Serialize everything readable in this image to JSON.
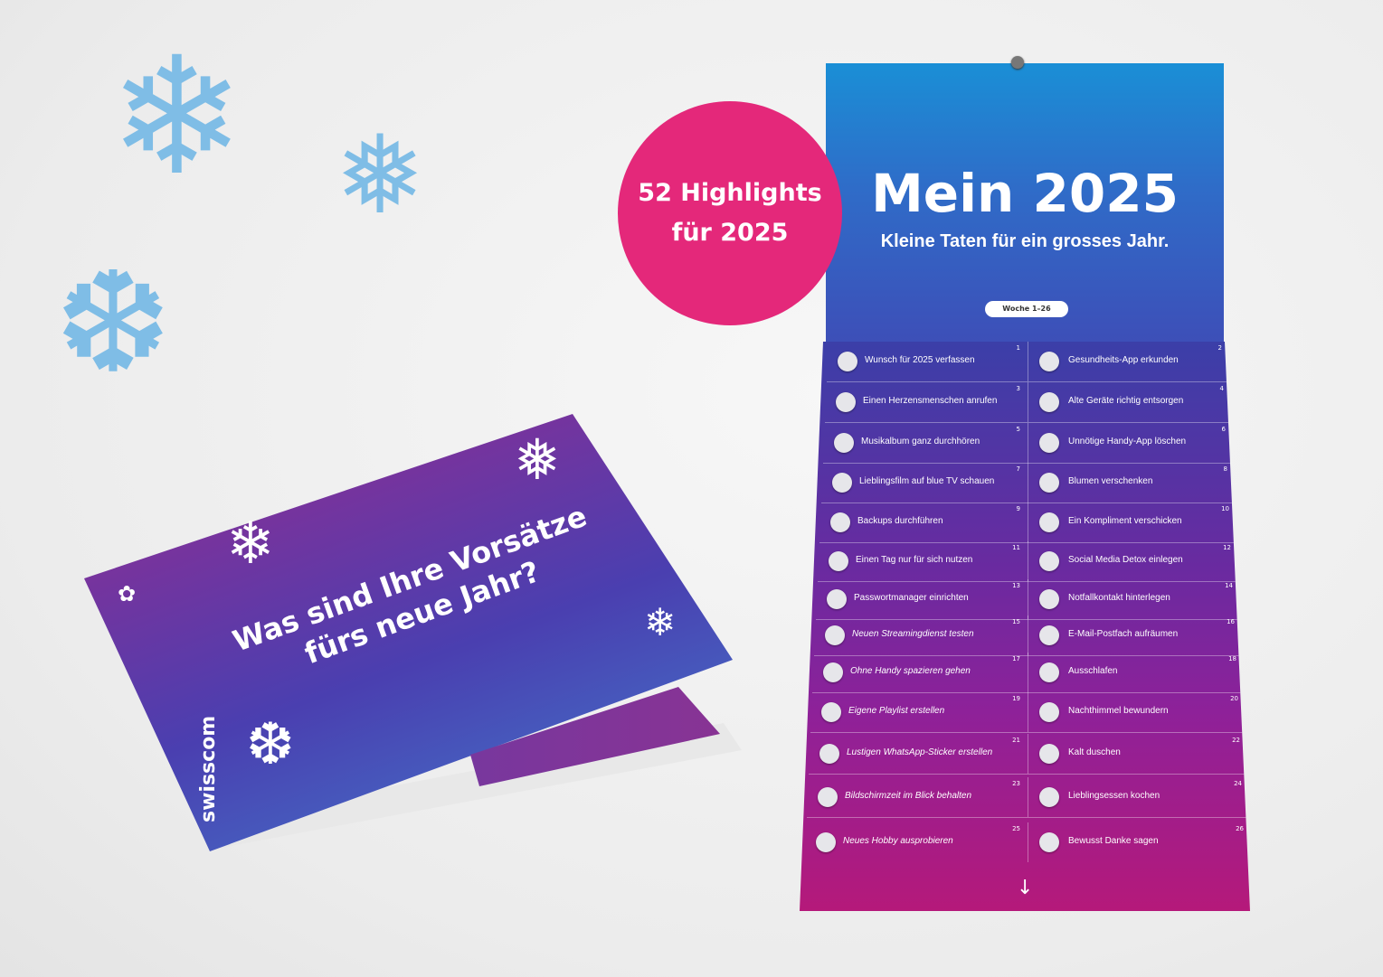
{
  "badge": {
    "line1": "52 Highlights",
    "line2": "für 2025",
    "color": "#e4287a"
  },
  "calendar": {
    "title": "Mein 2025",
    "subtitle": "Kleine Taten für ein grosses Jahr.",
    "week_label": "Woche 1–26",
    "items": [
      {
        "n": "1",
        "text": "Wunsch für 2025 verfassen"
      },
      {
        "n": "2",
        "text": "Gesundheits-App erkunden"
      },
      {
        "n": "3",
        "text": "Einen Herzensmenschen anrufen"
      },
      {
        "n": "4",
        "text": "Alte Geräte richtig entsorgen"
      },
      {
        "n": "5",
        "text": "Musikalbum ganz durchhören"
      },
      {
        "n": "6",
        "text": "Unnötige Handy-App löschen"
      },
      {
        "n": "7",
        "text": "Lieblingsfilm auf blue TV schauen"
      },
      {
        "n": "8",
        "text": "Blumen verschenken"
      },
      {
        "n": "9",
        "text": "Backups durchführen"
      },
      {
        "n": "10",
        "text": "Ein Kompliment verschicken"
      },
      {
        "n": "11",
        "text": "Einen Tag nur für sich nutzen"
      },
      {
        "n": "12",
        "text": "Social Media Detox einlegen"
      },
      {
        "n": "13",
        "text": "Passwortmanager einrichten"
      },
      {
        "n": "14",
        "text": "Notfallkontakt hinterlegen"
      },
      {
        "n": "15",
        "text": "Neuen Streamingdienst testen"
      },
      {
        "n": "16",
        "text": "E-Mail-Postfach aufräumen"
      },
      {
        "n": "17",
        "text": "Ohne Handy spazieren gehen"
      },
      {
        "n": "18",
        "text": "Ausschlafen"
      },
      {
        "n": "19",
        "text": "Eigene Playlist erstellen"
      },
      {
        "n": "20",
        "text": "Nachthimmel bewundern"
      },
      {
        "n": "21",
        "text": "Lustigen WhatsApp-Sticker erstellen"
      },
      {
        "n": "22",
        "text": "Kalt duschen"
      },
      {
        "n": "23",
        "text": "Bildschirmzeit im Blick behalten"
      },
      {
        "n": "24",
        "text": "Lieblingsessen kochen"
      },
      {
        "n": "25",
        "text": "Neues Hobby ausprobieren"
      },
      {
        "n": "26",
        "text": "Bewusst Danke sagen"
      }
    ],
    "arrow_icon": "arrow-down-icon"
  },
  "card": {
    "headline": "Was sind Ihre Vorsätze fürs neue Jahr?",
    "brand": "swisscom"
  }
}
